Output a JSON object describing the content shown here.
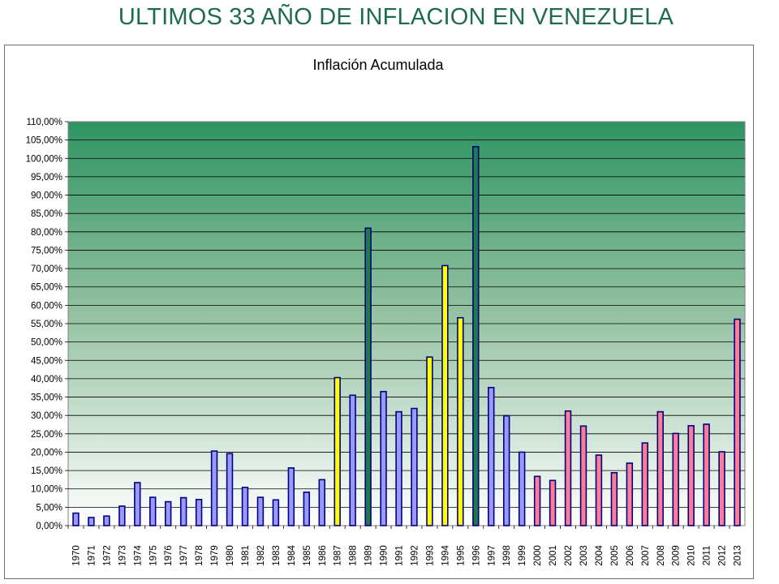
{
  "slide": {
    "title": "ULTIMOS 33 AÑO DE  INFLACION EN VENEZUELA"
  },
  "colors": {
    "blue": "#9999ff",
    "yellow": "#ffff00",
    "green": "#1f7a4a",
    "pink": "#ff7c96",
    "title": "#1f6b52"
  },
  "chart_data": {
    "type": "bar",
    "title": "Inflación Acumulada",
    "xlabel": "",
    "ylabel": "",
    "ylim": [
      0,
      110
    ],
    "y_ticks": [
      "0,00%",
      "5,00%",
      "10,00%",
      "15,00%",
      "20,00%",
      "25,00%",
      "30,00%",
      "35,00%",
      "40,00%",
      "45,00%",
      "50,00%",
      "55,00%",
      "60,00%",
      "65,00%",
      "70,00%",
      "75,00%",
      "80,00%",
      "85,00%",
      "90,00%",
      "95,00%",
      "100,00%",
      "105,00%",
      "110,00%"
    ],
    "grid": true,
    "legend": "none",
    "categories": [
      "1970",
      "1971",
      "1972",
      "1973",
      "1974",
      "1975",
      "1976",
      "1977",
      "1978",
      "1979",
      "1980",
      "1981",
      "1982",
      "1983",
      "1984",
      "1985",
      "1986",
      "1987",
      "1988",
      "1989",
      "1990",
      "1991",
      "1992",
      "1993",
      "1994",
      "1995",
      "1996",
      "1997",
      "1998",
      "1999",
      "2000",
      "2001",
      "2002",
      "2003",
      "2004",
      "2005",
      "2006",
      "2007",
      "2008",
      "2009",
      "2010",
      "2011",
      "2012",
      "2013"
    ],
    "values": [
      3.4,
      2.2,
      2.6,
      5.3,
      11.7,
      7.7,
      6.5,
      7.6,
      7.1,
      20.3,
      19.6,
      10.4,
      7.7,
      7.0,
      15.7,
      9.1,
      12.5,
      40.3,
      35.5,
      81.0,
      36.5,
      31.0,
      31.9,
      45.9,
      70.8,
      56.6,
      103.2,
      37.6,
      29.9,
      20.0,
      13.4,
      12.3,
      31.2,
      27.1,
      19.2,
      14.4,
      17.0,
      22.5,
      31.0,
      25.1,
      27.2,
      27.6,
      20.1,
      56.2
    ],
    "bar_colors": [
      "blue",
      "blue",
      "blue",
      "blue",
      "blue",
      "blue",
      "blue",
      "blue",
      "blue",
      "blue",
      "blue",
      "blue",
      "blue",
      "blue",
      "blue",
      "blue",
      "blue",
      "yellow",
      "blue",
      "green",
      "blue",
      "blue",
      "blue",
      "yellow",
      "yellow",
      "yellow",
      "green",
      "blue",
      "blue",
      "blue",
      "pink",
      "pink",
      "pink",
      "pink",
      "pink",
      "pink",
      "pink",
      "pink",
      "pink",
      "pink",
      "pink",
      "pink",
      "pink",
      "pink"
    ]
  }
}
